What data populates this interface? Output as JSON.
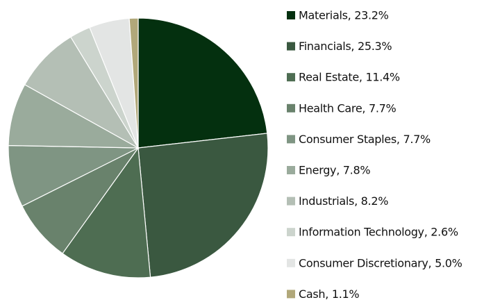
{
  "chart_data": {
    "type": "pie",
    "categories": [
      "Materials, 23.2%",
      "Financials, 25.3%",
      "Real Estate, 11.4%",
      "Health Care, 7.7%",
      "Consumer Staples, 7.7%",
      "Energy, 7.8%",
      "Industrials, 8.2%",
      "Information Technology, 2.6%",
      "Consumer Discretionary, 5.0%",
      "Cash, 1.1%"
    ],
    "values": [
      23.2,
      25.3,
      11.4,
      7.7,
      7.7,
      7.8,
      8.2,
      2.6,
      5.0,
      1.1
    ],
    "colors": [
      "#04300f",
      "#3a5840",
      "#4e6d52",
      "#69826c",
      "#7f9583",
      "#9aab9c",
      "#b4bfb5",
      "#ccd4cd",
      "#e3e5e4",
      "#b1a87a"
    ],
    "legend": "right"
  }
}
